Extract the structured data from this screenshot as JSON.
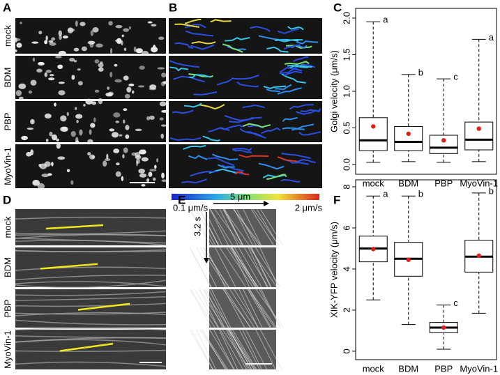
{
  "figure": {
    "panel_labels": [
      "A",
      "B",
      "C",
      "D",
      "E",
      "F"
    ],
    "rows": [
      "mock",
      "BDM",
      "PBP",
      "MyoVin-1"
    ],
    "colorbar": [
      "0.1 μm/s",
      "2 μm/s"
    ],
    "kymograph_x": "5 μm",
    "kymograph_y": "3.2 s"
  },
  "chart_data": [
    {
      "type": "box",
      "ylabel": "Golgi velocity (μm/s)",
      "categories": [
        "mock",
        "BDM",
        "PBP",
        "MyoVin-1"
      ],
      "min": [
        0.03,
        0.04,
        0.03,
        0.04
      ],
      "q1": [
        0.19,
        0.19,
        0.15,
        0.2
      ],
      "median": [
        0.33,
        0.31,
        0.23,
        0.34
      ],
      "q3": [
        0.64,
        0.52,
        0.4,
        0.58
      ],
      "max": [
        1.95,
        1.23,
        1.17,
        1.71
      ],
      "mean": [
        0.52,
        0.42,
        0.33,
        0.49
      ],
      "mean_color": "#e0201b",
      "significance": [
        "a",
        "b",
        "c",
        "a"
      ],
      "ylim": [
        -0.133,
        2.133
      ],
      "yticks": [
        {
          "value": 0,
          "label": "0.0"
        },
        0.5,
        {
          "value": 1,
          "label": "1.0"
        },
        1.5,
        {
          "value": 2,
          "label": "2.0"
        }
      ]
    },
    {
      "type": "box",
      "ylabel": "XIK-YFP velocity (μm/s)",
      "categories": [
        "mock",
        "BDM",
        "PBP",
        "MyoVin-1"
      ],
      "min": [
        2.5,
        1.3,
        0.1,
        1.85
      ],
      "q1": [
        4.35,
        3.65,
        0.9,
        3.85
      ],
      "median": [
        5.0,
        4.5,
        1.15,
        4.6
      ],
      "q3": [
        5.6,
        5.3,
        1.4,
        5.4
      ],
      "max": [
        7.55,
        7.55,
        2.25,
        7.7
      ],
      "mean": [
        4.97,
        4.45,
        1.15,
        4.65
      ],
      "mean_color": "#e0201b",
      "significance": [
        "a",
        "b",
        "c",
        "b"
      ],
      "ylim": [
        -0.41,
        8.34
      ],
      "yticks": [
        0,
        2,
        4,
        6,
        8
      ]
    }
  ]
}
